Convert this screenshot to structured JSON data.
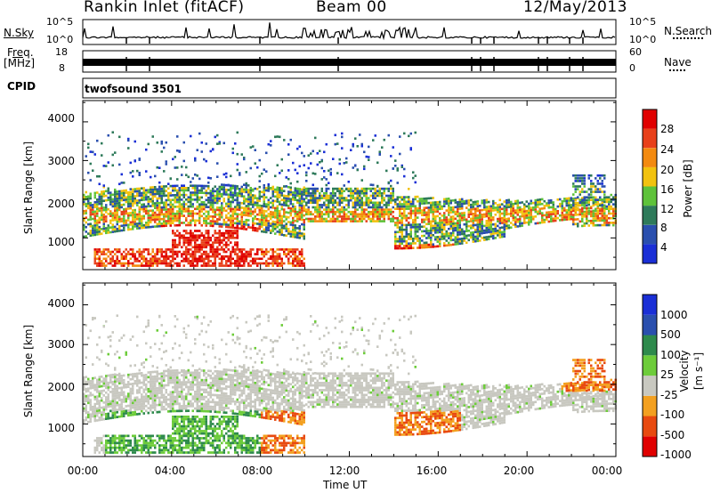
{
  "header": {
    "title": "Rankin Inlet (fitACF)",
    "beam": "Beam 00",
    "date": "12/May/2013"
  },
  "top_panels": {
    "nsky_label": "N.Sky",
    "nsky_ticks": [
      "10^5",
      "10^0"
    ],
    "nsearch_label": "N.Search",
    "nsearch_ticks": [
      "10^5",
      "10^0"
    ],
    "freq_label": "Freq.",
    "freq_unit": "[MHz]",
    "freq_ticks": [
      "18",
      "8"
    ],
    "nave_label": "Nave",
    "nave_ticks": [
      "60",
      "0"
    ],
    "cpid_label": "CPID",
    "cpid_value": "twofsound 3501"
  },
  "colors": {
    "power": [
      "#1a2fd6",
      "#2a4fae",
      "#2e7a5a",
      "#5ec23a",
      "#f2c20f",
      "#f38a10",
      "#e8401a",
      "#e00000"
    ],
    "velocity": [
      "#e00000",
      "#e84a10",
      "#f3a020",
      "#c8c8c0",
      "#6dcc3a",
      "#2e8a4c",
      "#2a4fae",
      "#1a2fd6"
    ]
  },
  "chart_data": [
    {
      "type": "heatmap",
      "name": "power",
      "ylabel": "Slant Range [km]",
      "yticks": [
        "4000",
        "3000",
        "2000",
        "1000"
      ],
      "ylim": [
        180,
        4550
      ],
      "x": [
        "00:00",
        "04:00",
        "08:00",
        "12:00",
        "16:00",
        "20:00",
        "00:00"
      ],
      "xlim_hours": [
        0,
        24
      ],
      "colorbar_label": "Power [dB]",
      "colorbar_ticks": [
        "28",
        "24",
        "20",
        "16",
        "12",
        "8",
        "4"
      ]
    },
    {
      "type": "heatmap",
      "name": "velocity",
      "ylabel": "Slant Range [km]",
      "yticks": [
        "4000",
        "3000",
        "2000",
        "1000"
      ],
      "ylim": [
        180,
        4550
      ],
      "x": [
        "00:00",
        "04:00",
        "08:00",
        "12:00",
        "16:00",
        "20:00",
        "00:00"
      ],
      "xlim_hours": [
        0,
        24
      ],
      "xlabel": "Time UT",
      "colorbar_label": "Velocity",
      "colorbar_unit": "[m s⁻¹]",
      "colorbar_ticks": [
        "1000",
        "500",
        "100",
        "25",
        "-25",
        "-100",
        "-500",
        "-1000"
      ]
    }
  ]
}
